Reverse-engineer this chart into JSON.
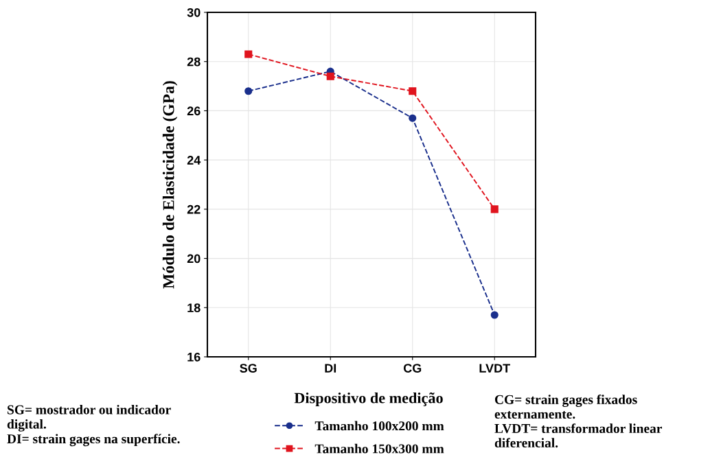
{
  "chart_data": {
    "type": "line",
    "ylabel": "Módulo de Elasticidade (GPa)",
    "xlabel": "Dispositivo de medição",
    "categories": [
      "SG",
      "DI",
      "CG",
      "LVDT"
    ],
    "series": [
      {
        "name": "Tamanho 100x200 mm",
        "color": "#1a2f8c",
        "marker": "circle",
        "values": [
          26.8,
          27.6,
          25.7,
          17.7
        ]
      },
      {
        "name": "Tamanho 150x300 mm",
        "color": "#e0141e",
        "marker": "square",
        "values": [
          28.3,
          27.4,
          26.8,
          22.0
        ]
      }
    ],
    "line_style": "dashed",
    "ylim": [
      16,
      30
    ],
    "yticks": [
      16,
      18,
      20,
      22,
      24,
      26,
      28,
      30
    ],
    "grid": true,
    "legend": "bottom",
    "annotations": [
      "SG= mostrador ou indicador\ndigital.\nDI= strain gages na superfície.",
      "CG= strain gages fixados\nexternamente.\nLVDT= transformador linear\ndiferencial."
    ]
  }
}
